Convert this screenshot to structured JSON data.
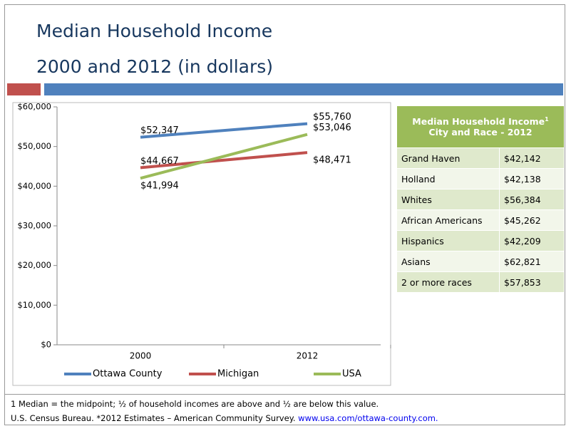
{
  "slide": {
    "title_lines": [
      "Median Household Income",
      "2000 and 2012 (in dollars)"
    ]
  },
  "chart_data": {
    "type": "line",
    "categories": [
      "2000",
      "2012"
    ],
    "series": [
      {
        "name": "Ottawa County",
        "color": "#4f81bd",
        "values": [
          52347,
          55760
        ],
        "value_labels": [
          "$52,347",
          "$55,760"
        ]
      },
      {
        "name": "Michigan",
        "color": "#c0504d",
        "values": [
          44667,
          48471
        ],
        "value_labels": [
          "$44,667",
          "$48,471"
        ]
      },
      {
        "name": "USA",
        "color": "#9bbb59",
        "values": [
          41994,
          53046
        ],
        "value_labels": [
          "$41,994",
          "$53,046"
        ]
      }
    ],
    "ylim": [
      0,
      60000
    ],
    "yticks": [
      {
        "value": 0,
        "label": "$0"
      },
      {
        "value": 10000,
        "label": "$10,000"
      },
      {
        "value": 20000,
        "label": "$20,000"
      },
      {
        "value": 30000,
        "label": "$30,000"
      },
      {
        "value": 40000,
        "label": "$40,000"
      },
      {
        "value": 50000,
        "label": "$50,000"
      },
      {
        "value": 60000,
        "label": "$60,000"
      }
    ],
    "legend": "bottom"
  },
  "table": {
    "header": {
      "title": "Median Household Income",
      "superscript": "1",
      "subtitle": "City and Race - 2012"
    },
    "rows": [
      [
        "Grand Haven",
        "$42,142"
      ],
      [
        "Holland",
        "$42,138"
      ],
      [
        "Whites",
        "$56,384"
      ],
      [
        "African Americans",
        "$45,262"
      ],
      [
        "Hispanics",
        "$42,209"
      ],
      [
        "Asians",
        "$62,821"
      ],
      [
        "2 or more races",
        "$57,853"
      ]
    ]
  },
  "notes": {
    "footnote": "1 Median = the midpoint; ½ of household incomes are above and ½ are below this value.",
    "source": "U.S. Census Bureau. *2012 Estimates – American Community Survey.",
    "link": "www.usa.com/ottawa-county.com."
  }
}
